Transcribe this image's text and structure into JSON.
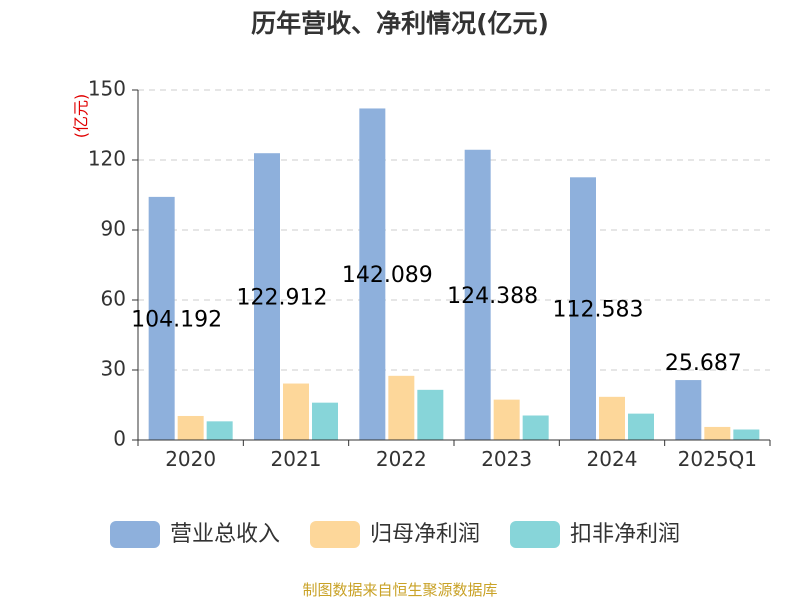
{
  "chart_data": {
    "type": "bar",
    "title": "历年营收、净利情况(亿元)",
    "ylabel": "(亿元)",
    "ylim": [
      0,
      150
    ],
    "yticks": [
      0,
      30,
      60,
      90,
      120,
      150
    ],
    "grid": true,
    "legend_position": "bottom",
    "categories": [
      "2020",
      "2021",
      "2022",
      "2023",
      "2024",
      "2025Q1"
    ],
    "series": [
      {
        "name": "营业总收入",
        "color": "#8eb0dc",
        "values": [
          104.192,
          122.912,
          142.089,
          124.388,
          112.583,
          25.687
        ],
        "labels": [
          "104.192",
          "122.912",
          "142.089",
          "124.388",
          "112.583",
          "25.687"
        ]
      },
      {
        "name": "归母净利润",
        "color": "#fdd79a",
        "values": [
          10.3,
          24.2,
          27.5,
          17.3,
          18.5,
          5.6
        ]
      },
      {
        "name": "扣非净利润",
        "color": "#87d5d9",
        "values": [
          8.0,
          16.0,
          21.5,
          10.5,
          11.3,
          4.5
        ]
      }
    ],
    "source": "制图数据来自恒生聚源数据库"
  }
}
